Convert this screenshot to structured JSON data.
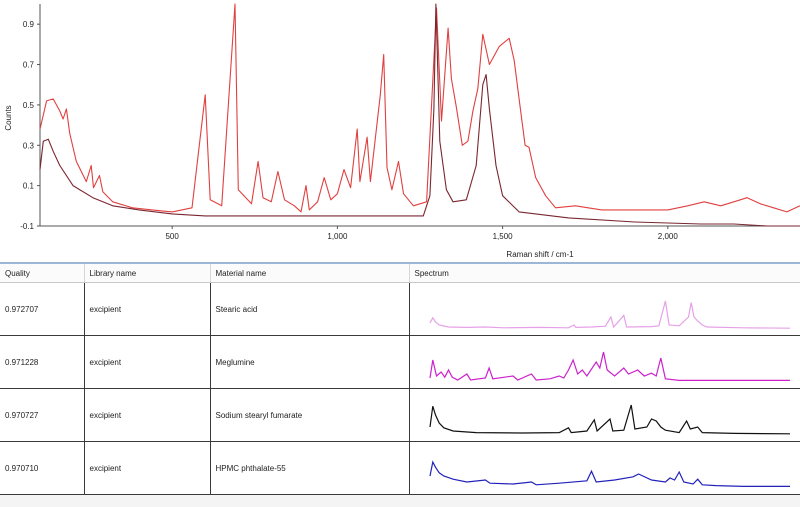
{
  "chart_data": {
    "type": "line",
    "xlabel": "Raman shift / cm-1",
    "ylabel": "Counts",
    "xlim": [
      100,
      2400
    ],
    "ylim": [
      -0.1,
      1.0
    ],
    "x_ticks": [
      "500",
      "1,000",
      "1,500",
      "2,000"
    ],
    "x_tick_values": [
      500,
      1000,
      1500,
      2000
    ],
    "y_ticks": [
      "-0.1",
      "0.1",
      "0.3",
      "0.5",
      "0.7",
      "0.9"
    ],
    "y_tick_values": [
      -0.1,
      0.1,
      0.3,
      0.5,
      0.7,
      0.9
    ],
    "grid": false,
    "series": [
      {
        "color": "#e04040",
        "points": [
          [
            100,
            0.38
          ],
          [
            120,
            0.52
          ],
          [
            140,
            0.53
          ],
          [
            160,
            0.47
          ],
          [
            170,
            0.43
          ],
          [
            180,
            0.48
          ],
          [
            190,
            0.36
          ],
          [
            210,
            0.22
          ],
          [
            240,
            0.12
          ],
          [
            255,
            0.2
          ],
          [
            262,
            0.09
          ],
          [
            280,
            0.15
          ],
          [
            290,
            0.07
          ],
          [
            320,
            0.02
          ],
          [
            380,
            -0.01
          ],
          [
            440,
            -0.02
          ],
          [
            500,
            -0.03
          ],
          [
            560,
            -0.01
          ],
          [
            600,
            0.55
          ],
          [
            615,
            0.03
          ],
          [
            650,
            0.0
          ],
          [
            690,
            1.0
          ],
          [
            700,
            0.08
          ],
          [
            740,
            0.01
          ],
          [
            760,
            0.22
          ],
          [
            775,
            0.04
          ],
          [
            800,
            0.02
          ],
          [
            820,
            0.17
          ],
          [
            840,
            0.03
          ],
          [
            870,
            0.0
          ],
          [
            890,
            -0.03
          ],
          [
            905,
            0.1
          ],
          [
            915,
            -0.02
          ],
          [
            940,
            0.02
          ],
          [
            960,
            0.14
          ],
          [
            980,
            0.03
          ],
          [
            1000,
            0.06
          ],
          [
            1020,
            0.18
          ],
          [
            1040,
            0.09
          ],
          [
            1060,
            0.38
          ],
          [
            1068,
            0.12
          ],
          [
            1090,
            0.34
          ],
          [
            1100,
            0.12
          ],
          [
            1130,
            0.55
          ],
          [
            1140,
            0.75
          ],
          [
            1150,
            0.19
          ],
          [
            1165,
            0.08
          ],
          [
            1185,
            0.22
          ],
          [
            1200,
            0.06
          ],
          [
            1230,
            0.0
          ],
          [
            1270,
            0.02
          ],
          [
            1300,
            0.98
          ],
          [
            1315,
            0.42
          ],
          [
            1335,
            0.88
          ],
          [
            1345,
            0.63
          ],
          [
            1360,
            0.49
          ],
          [
            1378,
            0.3
          ],
          [
            1395,
            0.32
          ],
          [
            1410,
            0.47
          ],
          [
            1425,
            0.58
          ],
          [
            1440,
            0.85
          ],
          [
            1460,
            0.7
          ],
          [
            1490,
            0.79
          ],
          [
            1520,
            0.83
          ],
          [
            1535,
            0.72
          ],
          [
            1550,
            0.53
          ],
          [
            1568,
            0.3
          ],
          [
            1580,
            0.29
          ],
          [
            1600,
            0.14
          ],
          [
            1630,
            0.05
          ],
          [
            1660,
            -0.01
          ],
          [
            1720,
            0.0
          ],
          [
            1800,
            -0.02
          ],
          [
            1900,
            -0.02
          ],
          [
            2000,
            -0.02
          ],
          [
            2060,
            0.0
          ],
          [
            2110,
            0.02
          ],
          [
            2160,
            0.0
          ],
          [
            2200,
            0.02
          ],
          [
            2240,
            0.04
          ],
          [
            2280,
            0.01
          ],
          [
            2320,
            -0.01
          ],
          [
            2360,
            -0.03
          ],
          [
            2400,
            0.0
          ]
        ]
      },
      {
        "color": "#7a2630",
        "points": [
          [
            100,
            0.18
          ],
          [
            110,
            0.32
          ],
          [
            125,
            0.33
          ],
          [
            140,
            0.27
          ],
          [
            160,
            0.2
          ],
          [
            200,
            0.1
          ],
          [
            260,
            0.04
          ],
          [
            320,
            0.0
          ],
          [
            400,
            -0.02
          ],
          [
            500,
            -0.04
          ],
          [
            600,
            -0.05
          ],
          [
            700,
            -0.05
          ],
          [
            800,
            -0.05
          ],
          [
            900,
            -0.05
          ],
          [
            1000,
            -0.05
          ],
          [
            1100,
            -0.05
          ],
          [
            1200,
            -0.05
          ],
          [
            1260,
            -0.05
          ],
          [
            1280,
            0.05
          ],
          [
            1292,
            0.48
          ],
          [
            1298,
            1.0
          ],
          [
            1310,
            0.32
          ],
          [
            1330,
            0.08
          ],
          [
            1350,
            0.02
          ],
          [
            1390,
            0.03
          ],
          [
            1420,
            0.2
          ],
          [
            1440,
            0.6
          ],
          [
            1450,
            0.65
          ],
          [
            1460,
            0.48
          ],
          [
            1480,
            0.2
          ],
          [
            1500,
            0.05
          ],
          [
            1550,
            -0.03
          ],
          [
            1700,
            -0.06
          ],
          [
            1900,
            -0.08
          ],
          [
            2100,
            -0.09
          ],
          [
            2200,
            -0.09
          ],
          [
            2300,
            -0.1
          ],
          [
            2400,
            -0.1
          ]
        ]
      }
    ]
  },
  "table": {
    "headers": {
      "quality": "Quality",
      "library": "Library name",
      "material": "Material name",
      "spectrum": "Spectrum"
    },
    "rows": [
      {
        "quality": "0.972707",
        "library": "excipient",
        "material": "Stearic acid",
        "spectrum_color": "#e6a0e8",
        "spectrum_points": [
          [
            0,
            0.15
          ],
          [
            3,
            0.28
          ],
          [
            6,
            0.18
          ],
          [
            10,
            0.1
          ],
          [
            20,
            0.05
          ],
          [
            40,
            0.04
          ],
          [
            60,
            0.05
          ],
          [
            80,
            0.03
          ],
          [
            120,
            0.04
          ],
          [
            150,
            0.03
          ],
          [
            156,
            0.1
          ],
          [
            158,
            0.04
          ],
          [
            175,
            0.05
          ],
          [
            190,
            0.07
          ],
          [
            196,
            0.3
          ],
          [
            199,
            0.05
          ],
          [
            210,
            0.34
          ],
          [
            213,
            0.05
          ],
          [
            240,
            0.06
          ],
          [
            248,
            0.08
          ],
          [
            255,
            0.7
          ],
          [
            259,
            0.1
          ],
          [
            270,
            0.08
          ],
          [
            280,
            0.3
          ],
          [
            283,
            0.66
          ],
          [
            286,
            0.3
          ],
          [
            290,
            0.2
          ],
          [
            295,
            0.1
          ],
          [
            300,
            0.05
          ],
          [
            340,
            0.03
          ],
          [
            390,
            0.02
          ]
        ]
      },
      {
        "quality": "0.971228",
        "library": "excipient",
        "material": "Meglumine",
        "spectrum_color": "#cc22cc",
        "spectrum_points": [
          [
            0,
            0.1
          ],
          [
            3,
            0.55
          ],
          [
            7,
            0.15
          ],
          [
            12,
            0.25
          ],
          [
            16,
            0.12
          ],
          [
            20,
            0.3
          ],
          [
            24,
            0.12
          ],
          [
            30,
            0.05
          ],
          [
            40,
            0.2
          ],
          [
            44,
            0.05
          ],
          [
            60,
            0.1
          ],
          [
            64,
            0.35
          ],
          [
            68,
            0.08
          ],
          [
            90,
            0.15
          ],
          [
            95,
            0.05
          ],
          [
            110,
            0.2
          ],
          [
            115,
            0.05
          ],
          [
            130,
            0.08
          ],
          [
            140,
            0.15
          ],
          [
            145,
            0.1
          ],
          [
            150,
            0.3
          ],
          [
            155,
            0.55
          ],
          [
            160,
            0.2
          ],
          [
            165,
            0.3
          ],
          [
            170,
            0.15
          ],
          [
            180,
            0.5
          ],
          [
            184,
            0.35
          ],
          [
            188,
            0.75
          ],
          [
            192,
            0.3
          ],
          [
            200,
            0.15
          ],
          [
            210,
            0.35
          ],
          [
            215,
            0.2
          ],
          [
            225,
            0.3
          ],
          [
            232,
            0.15
          ],
          [
            240,
            0.22
          ],
          [
            245,
            0.15
          ],
          [
            250,
            0.6
          ],
          [
            255,
            0.08
          ],
          [
            270,
            0.04
          ],
          [
            390,
            0.04
          ]
        ]
      },
      {
        "quality": "0.970727",
        "library": "excipient",
        "material": "Sodium stearyl fumarate",
        "spectrum_color": "#111111",
        "spectrum_points": [
          [
            0,
            0.2
          ],
          [
            3,
            0.72
          ],
          [
            6,
            0.5
          ],
          [
            10,
            0.3
          ],
          [
            15,
            0.18
          ],
          [
            25,
            0.1
          ],
          [
            50,
            0.06
          ],
          [
            100,
            0.05
          ],
          [
            140,
            0.06
          ],
          [
            150,
            0.18
          ],
          [
            153,
            0.06
          ],
          [
            170,
            0.1
          ],
          [
            178,
            0.38
          ],
          [
            181,
            0.1
          ],
          [
            195,
            0.4
          ],
          [
            198,
            0.1
          ],
          [
            210,
            0.12
          ],
          [
            218,
            0.75
          ],
          [
            222,
            0.15
          ],
          [
            235,
            0.2
          ],
          [
            240,
            0.4
          ],
          [
            245,
            0.35
          ],
          [
            250,
            0.2
          ],
          [
            255,
            0.12
          ],
          [
            270,
            0.06
          ],
          [
            278,
            0.35
          ],
          [
            282,
            0.15
          ],
          [
            290,
            0.2
          ],
          [
            295,
            0.06
          ],
          [
            330,
            0.04
          ],
          [
            390,
            0.03
          ]
        ]
      },
      {
        "quality": "0.970710",
        "library": "excipient",
        "material": "HPMC phthalate-55",
        "spectrum_color": "#2222bb",
        "spectrum_points": [
          [
            0,
            0.3
          ],
          [
            3,
            0.65
          ],
          [
            6,
            0.52
          ],
          [
            10,
            0.38
          ],
          [
            15,
            0.3
          ],
          [
            25,
            0.22
          ],
          [
            40,
            0.15
          ],
          [
            60,
            0.2
          ],
          [
            65,
            0.12
          ],
          [
            90,
            0.1
          ],
          [
            110,
            0.15
          ],
          [
            115,
            0.08
          ],
          [
            140,
            0.12
          ],
          [
            170,
            0.18
          ],
          [
            175,
            0.42
          ],
          [
            180,
            0.15
          ],
          [
            200,
            0.2
          ],
          [
            220,
            0.28
          ],
          [
            226,
            0.35
          ],
          [
            240,
            0.2
          ],
          [
            255,
            0.15
          ],
          [
            260,
            0.25
          ],
          [
            265,
            0.2
          ],
          [
            270,
            0.4
          ],
          [
            275,
            0.15
          ],
          [
            285,
            0.1
          ],
          [
            290,
            0.22
          ],
          [
            295,
            0.08
          ],
          [
            310,
            0.06
          ],
          [
            340,
            0.04
          ],
          [
            390,
            0.04
          ]
        ]
      }
    ]
  }
}
